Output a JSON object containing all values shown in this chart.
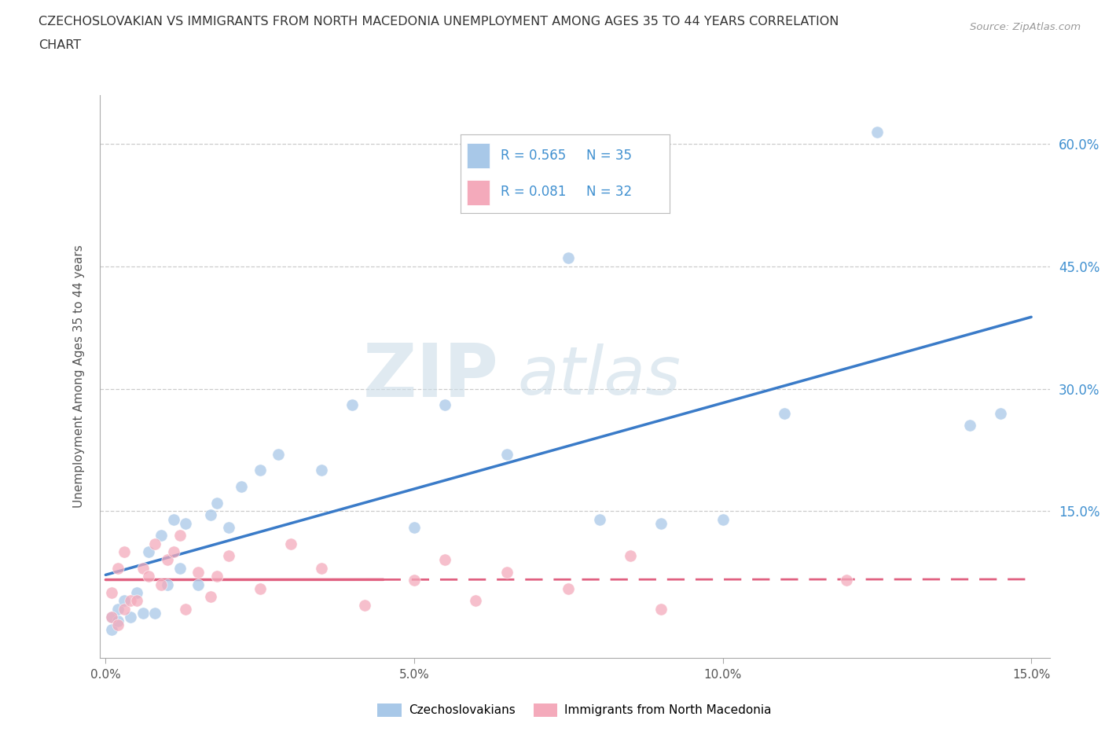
{
  "title_line1": "CZECHOSLOVAKIAN VS IMMIGRANTS FROM NORTH MACEDONIA UNEMPLOYMENT AMONG AGES 35 TO 44 YEARS CORRELATION",
  "title_line2": "CHART",
  "source": "Source: ZipAtlas.com",
  "ylabel": "Unemployment Among Ages 35 to 44 years",
  "legend_label1": "Czechoslovakians",
  "legend_label2": "Immigrants from North Macedonia",
  "R1": 0.565,
  "N1": 35,
  "R2": 0.081,
  "N2": 32,
  "color1": "#A8C8E8",
  "color2": "#F4AABB",
  "line_color1": "#3A7BC8",
  "line_color2": "#E06080",
  "right_tick_color": "#4090D0",
  "background": "#ffffff",
  "xlim_low": -0.001,
  "xlim_high": 0.153,
  "ylim_low": -0.03,
  "ylim_high": 0.66,
  "xticks": [
    0.0,
    0.05,
    0.1,
    0.15
  ],
  "xtick_labels": [
    "0.0%",
    "5.0%",
    "10.0%",
    "15.0%"
  ],
  "yticks_left": [
    0.0
  ],
  "yticks_left_labels": [
    ""
  ],
  "yticks_right": [
    0.0,
    0.15,
    0.3,
    0.45,
    0.6
  ],
  "yticks_right_labels": [
    "",
    "15.0%",
    "30.0%",
    "45.0%",
    "60.0%"
  ],
  "grid_yticks": [
    0.15,
    0.3,
    0.45,
    0.6
  ],
  "czecho_x": [
    0.001,
    0.001,
    0.002,
    0.002,
    0.003,
    0.004,
    0.005,
    0.006,
    0.007,
    0.008,
    0.009,
    0.01,
    0.011,
    0.012,
    0.013,
    0.015,
    0.017,
    0.018,
    0.02,
    0.022,
    0.025,
    0.028,
    0.035,
    0.04,
    0.05,
    0.055,
    0.065,
    0.075,
    0.08,
    0.09,
    0.1,
    0.11,
    0.125,
    0.14,
    0.145
  ],
  "czecho_y": [
    0.005,
    0.02,
    0.015,
    0.03,
    0.04,
    0.02,
    0.05,
    0.025,
    0.1,
    0.025,
    0.12,
    0.06,
    0.14,
    0.08,
    0.135,
    0.06,
    0.145,
    0.16,
    0.13,
    0.18,
    0.2,
    0.22,
    0.2,
    0.28,
    0.13,
    0.28,
    0.22,
    0.46,
    0.14,
    0.135,
    0.14,
    0.27,
    0.615,
    0.255,
    0.27
  ],
  "mac_x": [
    0.001,
    0.001,
    0.002,
    0.002,
    0.003,
    0.003,
    0.004,
    0.005,
    0.006,
    0.007,
    0.008,
    0.009,
    0.01,
    0.011,
    0.012,
    0.013,
    0.015,
    0.017,
    0.018,
    0.02,
    0.025,
    0.03,
    0.035,
    0.042,
    0.05,
    0.055,
    0.06,
    0.065,
    0.075,
    0.085,
    0.09,
    0.12
  ],
  "mac_y": [
    0.02,
    0.05,
    0.01,
    0.08,
    0.03,
    0.1,
    0.04,
    0.04,
    0.08,
    0.07,
    0.11,
    0.06,
    0.09,
    0.1,
    0.12,
    0.03,
    0.075,
    0.045,
    0.07,
    0.095,
    0.055,
    0.11,
    0.08,
    0.035,
    0.065,
    0.09,
    0.04,
    0.075,
    0.055,
    0.095,
    0.03,
    0.065
  ]
}
